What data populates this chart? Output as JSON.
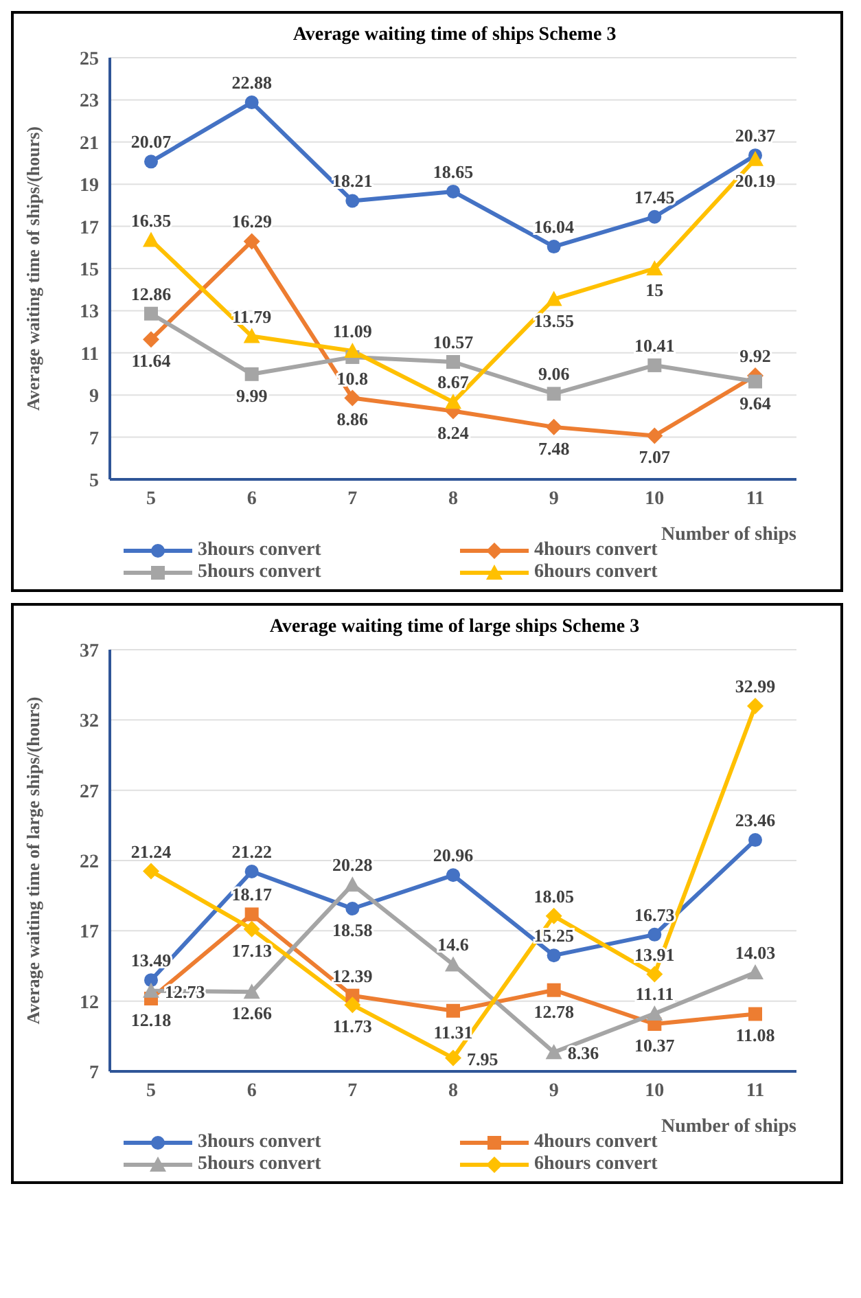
{
  "chart_data": [
    {
      "type": "line",
      "title": "Average waiting time of ships  Scheme 3",
      "xlabel": "Number of ships",
      "ylabel": "Average waiting time of ships/(hours)",
      "categories": [
        "5",
        "6",
        "7",
        "8",
        "9",
        "10",
        "11"
      ],
      "ylim": [
        5,
        25
      ],
      "yticks": [
        5,
        7,
        9,
        11,
        13,
        15,
        17,
        19,
        21,
        23,
        25
      ],
      "grid": "y",
      "legend": "bottom",
      "data_labels": true,
      "series": [
        {
          "name": "3hours convert",
          "color": "#4472c4",
          "marker": "circle",
          "values": [
            20.07,
            22.88,
            18.21,
            18.65,
            16.04,
            17.45,
            20.37
          ]
        },
        {
          "name": "4hours convert",
          "color": "#ed7d31",
          "marker": "diamond",
          "values": [
            11.64,
            16.29,
            8.86,
            8.24,
            7.48,
            7.07,
            9.92
          ]
        },
        {
          "name": "5hours convert",
          "color": "#a5a5a5",
          "marker": "square",
          "values": [
            12.86,
            9.99,
            10.8,
            10.57,
            9.06,
            10.41,
            9.64
          ]
        },
        {
          "name": "6hours convert",
          "color": "#ffc000",
          "marker": "triangle",
          "values": [
            16.35,
            11.79,
            11.09,
            8.67,
            13.55,
            15,
            20.19
          ]
        }
      ]
    },
    {
      "type": "line",
      "title": "Average waiting time of large ships  Scheme 3",
      "xlabel": "Number of ships",
      "ylabel": "Average waiting time of large ships/(hours)",
      "categories": [
        "5",
        "6",
        "7",
        "8",
        "9",
        "10",
        "11"
      ],
      "ylim": [
        7,
        37
      ],
      "yticks": [
        7,
        12,
        17,
        22,
        27,
        32,
        37
      ],
      "grid": "y",
      "legend": "bottom",
      "data_labels": true,
      "series": [
        {
          "name": "3hours convert",
          "color": "#4472c4",
          "marker": "circle",
          "values": [
            13.49,
            21.22,
            18.58,
            20.96,
            15.25,
            16.73,
            23.46
          ]
        },
        {
          "name": "4hours convert",
          "color": "#ed7d31",
          "marker": "square",
          "values": [
            12.18,
            18.17,
            12.39,
            11.31,
            12.78,
            10.37,
            11.08
          ]
        },
        {
          "name": "5hours convert",
          "color": "#a5a5a5",
          "marker": "triangle",
          "values": [
            12.73,
            12.66,
            20.28,
            14.6,
            8.36,
            11.11,
            14.03
          ]
        },
        {
          "name": "6hours convert",
          "color": "#ffc000",
          "marker": "diamond",
          "values": [
            21.24,
            17.13,
            11.73,
            7.95,
            18.05,
            13.91,
            32.99
          ]
        }
      ]
    }
  ]
}
